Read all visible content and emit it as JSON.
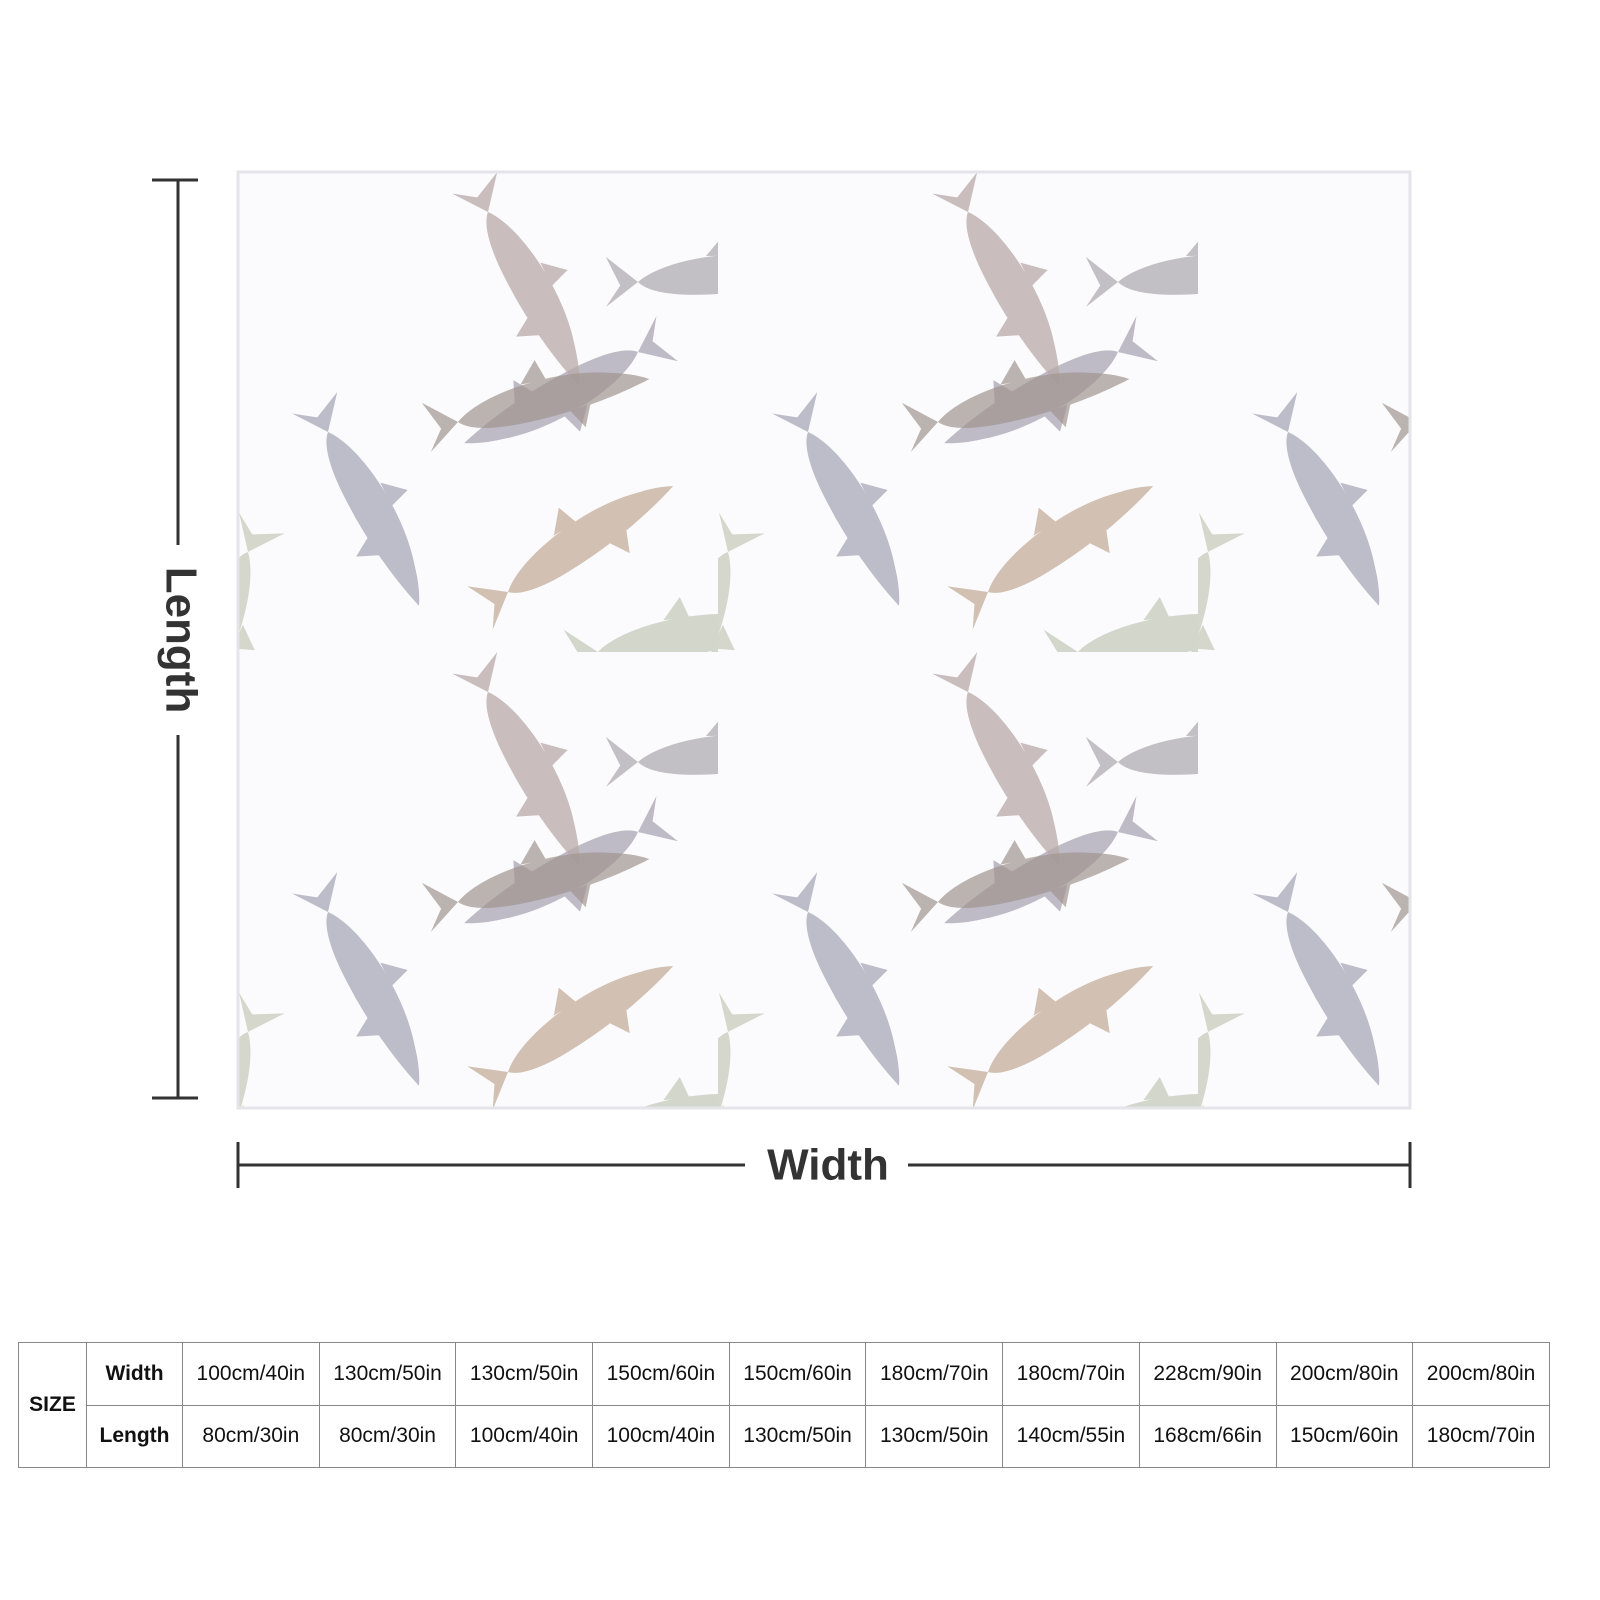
{
  "dimensions": {
    "length_label": "Length",
    "width_label": "Width"
  },
  "size_table": {
    "label": "SIZE",
    "row_headers": [
      "Width",
      "Length"
    ],
    "rows": [
      [
        "100cm/40in",
        "130cm/50in",
        "130cm/50in",
        "150cm/60in",
        "150cm/60in",
        "180cm/70in",
        "180cm/70in",
        "228cm/90in",
        "200cm/80in",
        "200cm/80in"
      ],
      [
        "80cm/30in",
        "80cm/30in",
        "100cm/40in",
        "100cm/40in",
        "130cm/50in",
        "130cm/50in",
        "140cm/55in",
        "168cm/66in",
        "150cm/60in",
        "180cm/70in"
      ]
    ]
  }
}
